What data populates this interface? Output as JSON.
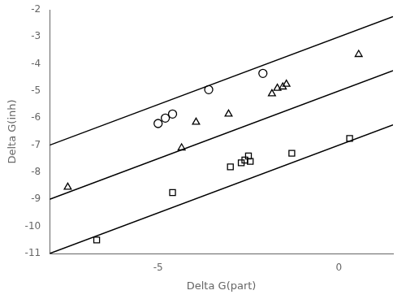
{
  "chart_data": {
    "type": "scatter",
    "xlabel": "Delta G(part)",
    "ylabel": "Delta G(inh)",
    "xlim": [
      -8.0,
      1.5
    ],
    "ylim": [
      -11,
      -2
    ],
    "xticks": [
      -5,
      0
    ],
    "yticks": [
      -2,
      -3,
      -4,
      -5,
      -6,
      -7,
      -8,
      -9,
      -10,
      -11
    ],
    "grid": false,
    "series": [
      {
        "type": "line",
        "line_style": "solid",
        "color": "#000000",
        "x": [
          -8.0,
          1.5
        ],
        "values": [
          -7.0,
          -2.25
        ]
      },
      {
        "type": "line",
        "line_style": "solid",
        "color": "#000000",
        "x": [
          -8.0,
          1.5
        ],
        "values": [
          -9.0,
          -4.25
        ]
      },
      {
        "type": "line",
        "line_style": "solid",
        "color": "#000000",
        "x": [
          -8.0,
          1.5
        ],
        "values": [
          -11.0,
          -6.25
        ]
      },
      {
        "type": "scatter",
        "marker": "circle",
        "color": "#000000",
        "x": [
          -4.6,
          -4.8,
          -5.0,
          -3.6,
          -2.1
        ],
        "values": [
          -5.85,
          -6.0,
          -6.2,
          -4.95,
          -4.35
        ]
      },
      {
        "type": "scatter",
        "marker": "triangle",
        "color": "#000000",
        "x": [
          -7.5,
          -4.35,
          -3.95,
          -3.05,
          -1.85,
          -1.7,
          -1.55,
          -1.45,
          0.55
        ],
        "values": [
          -8.55,
          -7.1,
          -6.15,
          -5.85,
          -5.1,
          -4.9,
          -4.85,
          -4.75,
          -3.65
        ]
      },
      {
        "type": "scatter",
        "marker": "square",
        "color": "#000000",
        "x": [
          -6.7,
          -4.6,
          -3.0,
          -2.7,
          -2.6,
          -2.5,
          -2.45,
          -1.3,
          0.3
        ],
        "values": [
          -10.5,
          -8.75,
          -7.8,
          -7.65,
          -7.55,
          -7.4,
          -7.6,
          -7.3,
          -6.75
        ]
      }
    ]
  }
}
